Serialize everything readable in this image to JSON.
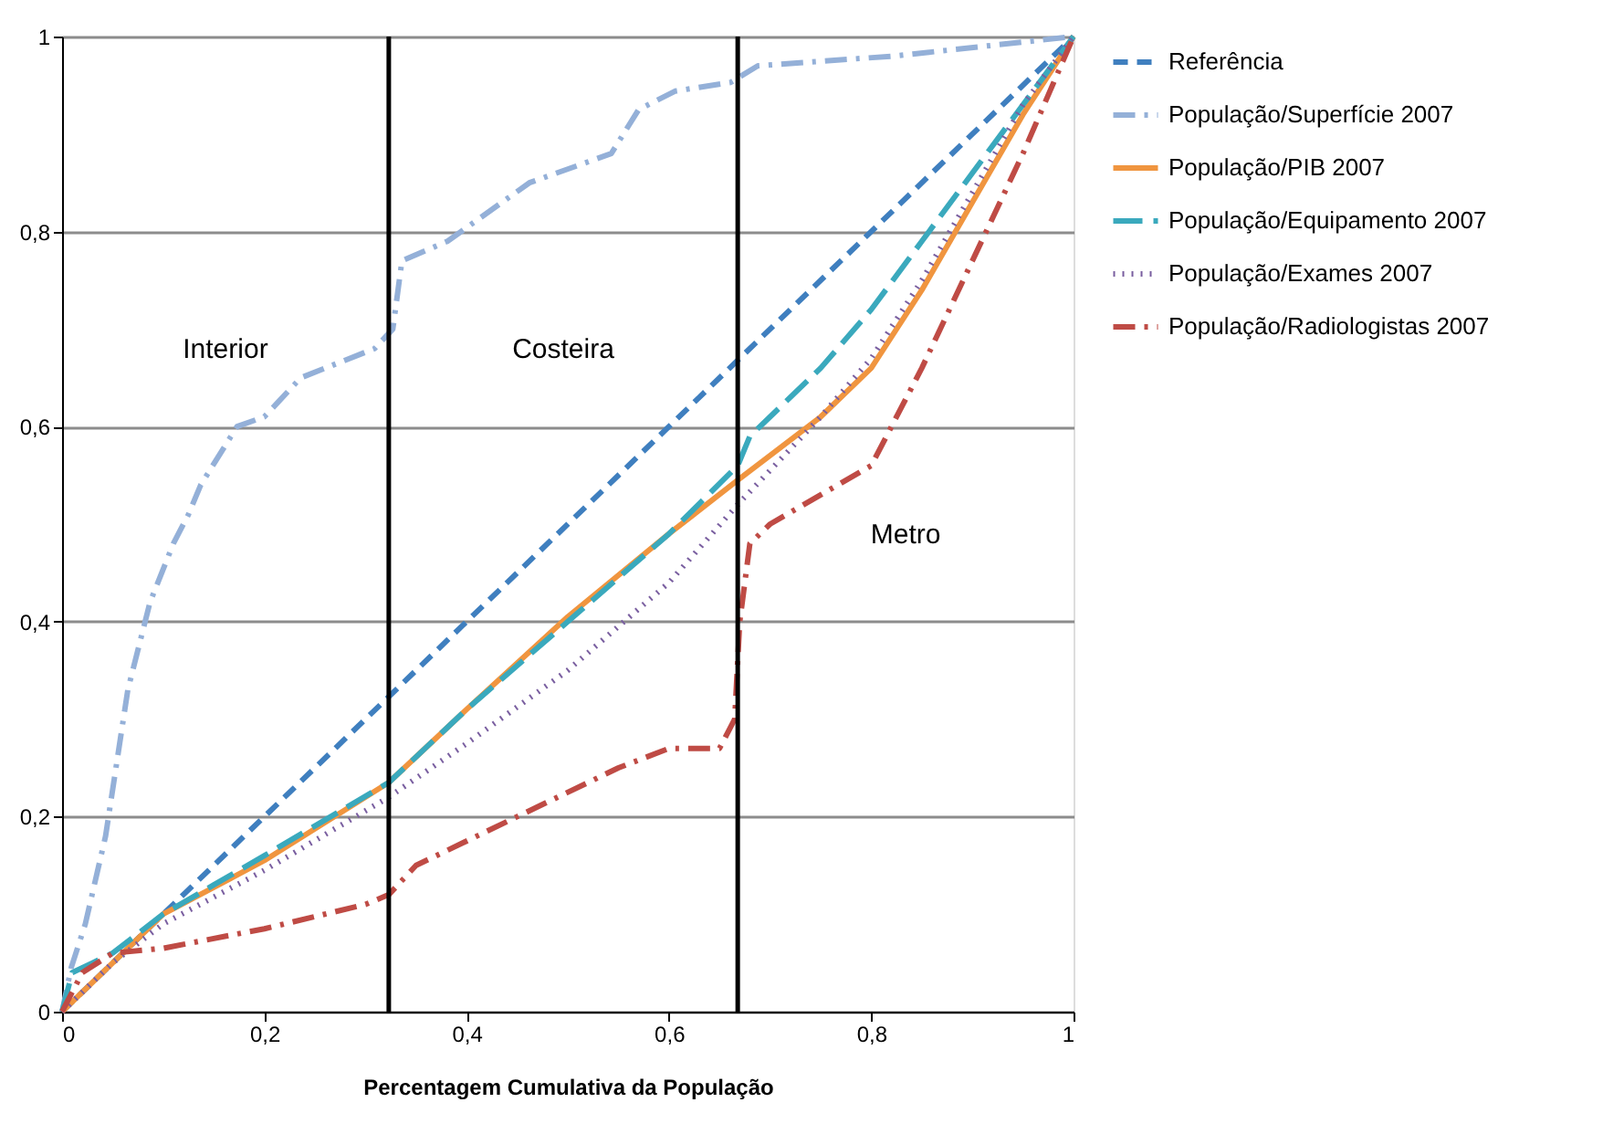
{
  "chart_data": {
    "type": "line",
    "xlabel": "Percentagem Cumulativa da População",
    "xlim": [
      0,
      1
    ],
    "ylim": [
      0,
      1
    ],
    "xticks": [
      0,
      {
        "value": 0.2,
        "label": "0,2"
      },
      {
        "value": 0.4,
        "label": "0,4"
      },
      {
        "value": 0.6,
        "label": "0,6"
      },
      {
        "value": 0.8,
        "label": "0,8"
      },
      1
    ],
    "yticks": [
      0,
      {
        "value": 0.2,
        "label": "0,2"
      },
      {
        "value": 0.4,
        "label": "0,4"
      },
      {
        "value": 0.6,
        "label": "0,6"
      },
      {
        "value": 0.8,
        "label": "0,8"
      },
      1
    ],
    "grid": "y",
    "legend": "right",
    "marker": "none",
    "ref_lines": [
      {
        "axis": "x",
        "value": 0.323,
        "color": "#000000",
        "line_style": "solid"
      },
      {
        "axis": "x",
        "value": 0.668,
        "color": "#000000",
        "line_style": "solid"
      }
    ],
    "annotations": [
      "Interior",
      "Costeira",
      "Metro"
    ],
    "series": [
      {
        "name": "Referência",
        "color": "#3f7fbf",
        "line_style": "dashed",
        "x": [
          0,
          1
        ],
        "values": [
          0,
          1
        ]
      },
      {
        "name": "População/Superfície 2007",
        "color": "#94b0d8",
        "line_style": "dashdot",
        "x": [
          0,
          0.009,
          0.023,
          0.043,
          0.065,
          0.087,
          0.11,
          0.125,
          0.137,
          0.173,
          0.2,
          0.236,
          0.309,
          0.327,
          0.336,
          0.381,
          0.408,
          0.462,
          0.543,
          0.57,
          0.606,
          0.661,
          0.688,
          0.823,
          1
        ],
        "values": [
          0,
          0.045,
          0.09,
          0.18,
          0.33,
          0.42,
          0.48,
          0.51,
          0.54,
          0.6,
          0.61,
          0.65,
          0.68,
          0.7,
          0.77,
          0.79,
          0.81,
          0.85,
          0.88,
          0.925,
          0.944,
          0.953,
          0.97,
          0.98,
          1
        ]
      },
      {
        "name": "População/PIB 2007",
        "color": "#f0953f",
        "line_style": "solid",
        "x": [
          0,
          0.05,
          0.1,
          0.2,
          0.323,
          0.4,
          0.5,
          0.6,
          0.668,
          0.75,
          0.8,
          0.85,
          0.9,
          0.95,
          1
        ],
        "values": [
          0,
          0.05,
          0.1,
          0.155,
          0.235,
          0.31,
          0.405,
          0.49,
          0.545,
          0.61,
          0.66,
          0.74,
          0.83,
          0.92,
          1
        ]
      },
      {
        "name": "População/Equipamento 2007",
        "color": "#3aa9bd",
        "line_style": "longdash",
        "x": [
          0,
          0.01,
          0.03,
          0.05,
          0.1,
          0.15,
          0.2,
          0.323,
          0.4,
          0.5,
          0.6,
          0.668,
          0.68,
          0.75,
          0.8,
          0.85,
          0.9,
          0.95,
          1
        ],
        "values": [
          0,
          0.04,
          0.05,
          0.06,
          0.1,
          0.13,
          0.16,
          0.235,
          0.31,
          0.4,
          0.49,
          0.56,
          0.59,
          0.66,
          0.72,
          0.79,
          0.86,
          0.93,
          1
        ]
      },
      {
        "name": "População/Exames 2007",
        "color": "#7a5fa0",
        "line_style": "dotted",
        "x": [
          0,
          0.05,
          0.1,
          0.2,
          0.323,
          0.4,
          0.5,
          0.6,
          0.668,
          0.75,
          0.8,
          0.85,
          0.9,
          0.95,
          1
        ],
        "values": [
          0,
          0.05,
          0.09,
          0.145,
          0.22,
          0.275,
          0.35,
          0.44,
          0.52,
          0.61,
          0.67,
          0.75,
          0.84,
          0.93,
          1
        ]
      },
      {
        "name": "População/Radiologistas 2007",
        "color": "#bf4b45",
        "line_style": "dashdot",
        "x": [
          0,
          0.02,
          0.05,
          0.1,
          0.2,
          0.3,
          0.323,
          0.35,
          0.45,
          0.55,
          0.6,
          0.65,
          0.665,
          0.67,
          0.68,
          0.7,
          0.8,
          0.85,
          0.9,
          0.95,
          1
        ],
        "values": [
          0,
          0.04,
          0.06,
          0.065,
          0.085,
          0.11,
          0.12,
          0.15,
          0.2,
          0.25,
          0.27,
          0.27,
          0.3,
          0.4,
          0.48,
          0.5,
          0.56,
          0.66,
          0.77,
          0.88,
          1
        ]
      }
    ]
  }
}
